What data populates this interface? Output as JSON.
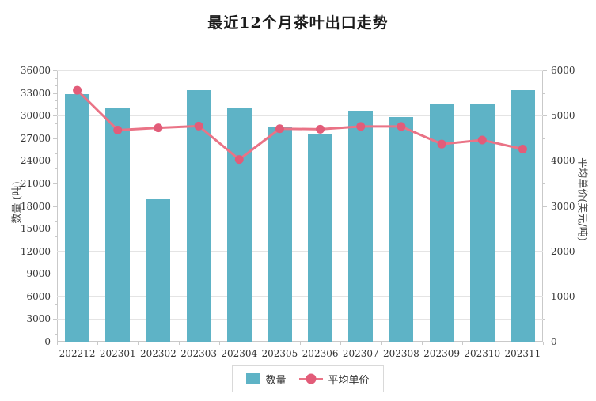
{
  "title": "最近12个月茶叶出口走势",
  "chart_data": {
    "type": "bar",
    "combo": "bar+line dual-axis",
    "title": "最近12个月茶叶出口走势",
    "categories": [
      "202212",
      "202301",
      "202302",
      "202303",
      "202304",
      "202305",
      "202306",
      "202307",
      "202308",
      "202309",
      "202310",
      "202311"
    ],
    "series": [
      {
        "name": "数量",
        "type": "bar",
        "yaxis": "left",
        "unit": "吨",
        "values": [
          32900,
          31100,
          18900,
          33400,
          31000,
          28500,
          27600,
          30600,
          29800,
          31500,
          31500,
          33400
        ]
      },
      {
        "name": "平均单价",
        "type": "line",
        "yaxis": "right",
        "unit": "美元/吨",
        "values": [
          5560,
          4680,
          4730,
          4770,
          4030,
          4710,
          4700,
          4760,
          4760,
          4370,
          4460,
          4260
        ]
      }
    ],
    "left_axis": {
      "title": "数量 (吨)",
      "min": 0,
      "max": 36000,
      "tick_interval": 3000,
      "minor_tick_interval": 1000,
      "ticks": [
        0,
        3000,
        6000,
        9000,
        12000,
        15000,
        18000,
        21000,
        24000,
        27000,
        30000,
        33000,
        36000
      ]
    },
    "right_axis": {
      "title": "平均单价(美元/吨)",
      "min": 0,
      "max": 6000,
      "tick_interval": 1000,
      "minor_tick_interval": 500,
      "ticks": [
        0,
        1000,
        2000,
        3000,
        4000,
        5000,
        6000
      ]
    },
    "legend": {
      "position": "bottom",
      "items": [
        {
          "label": "数量",
          "marker": "square"
        },
        {
          "label": "平均单价",
          "marker": "line-dot"
        }
      ]
    },
    "grid": true
  },
  "colors": {
    "bar": "#5eb3c6",
    "line": "#ea7386",
    "point": "#e25c79",
    "grid": "#e4e4e4",
    "axis": "#c9c9c9",
    "text": "#333333",
    "background": "#ffffff"
  }
}
